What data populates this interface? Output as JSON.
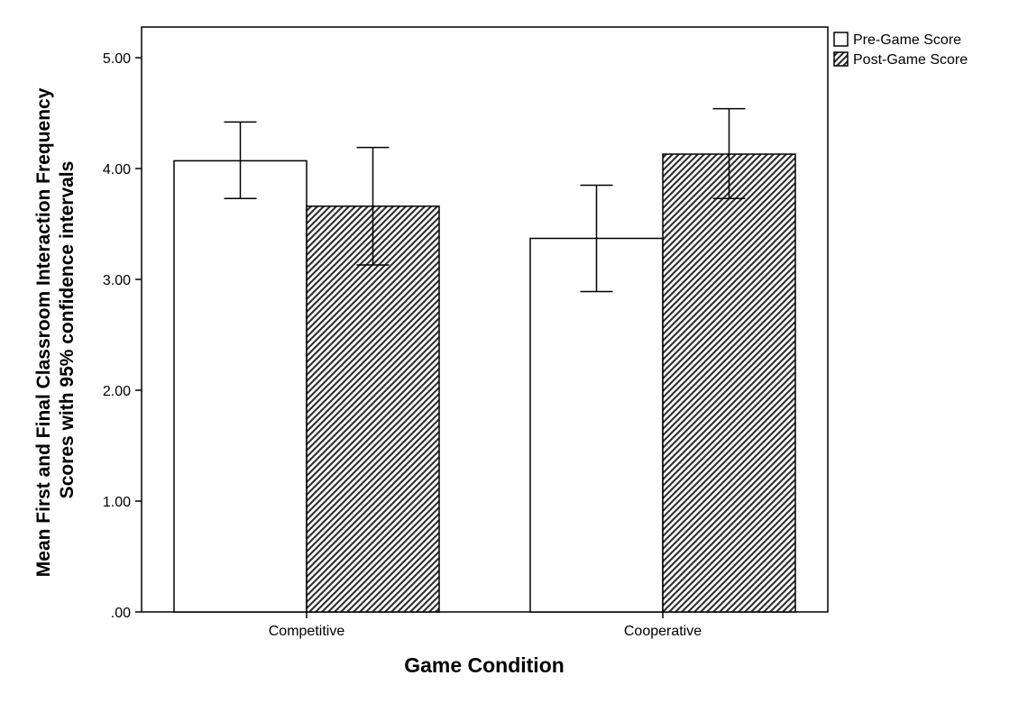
{
  "chart_data": {
    "type": "bar",
    "xlabel": "Game Condition",
    "ylabel_lines": [
      "Mean First and Final Classroom Interaction Frequency",
      "Scores with 95% confidence intervals"
    ],
    "categories": [
      "Competitive",
      "Cooperative"
    ],
    "ylim": [
      0,
      5.0
    ],
    "yticks": [
      {
        "value": 0,
        "label": ".00"
      },
      {
        "value": 1,
        "label": "1.00"
      },
      {
        "value": 2,
        "label": "2.00"
      },
      {
        "value": 3,
        "label": "3.00"
      },
      {
        "value": 4,
        "label": "4.00"
      },
      {
        "value": 5,
        "label": "5.00"
      }
    ],
    "series": [
      {
        "name": "Pre-Game Score",
        "pattern": "plain",
        "values": [
          4.07,
          3.37
        ],
        "ci_low": [
          3.73,
          2.89
        ],
        "ci_high": [
          4.42,
          3.85
        ]
      },
      {
        "name": "Post-Game Score",
        "pattern": "hatched",
        "values": [
          3.66,
          4.13
        ],
        "ci_low": [
          3.13,
          3.73
        ],
        "ci_high": [
          4.19,
          4.54
        ]
      }
    ],
    "legend_position": "top-right-outside",
    "grid": false,
    "colors": {
      "bar_fill": "#ffffff",
      "hatch": "#333333",
      "stroke": "#000000"
    }
  }
}
